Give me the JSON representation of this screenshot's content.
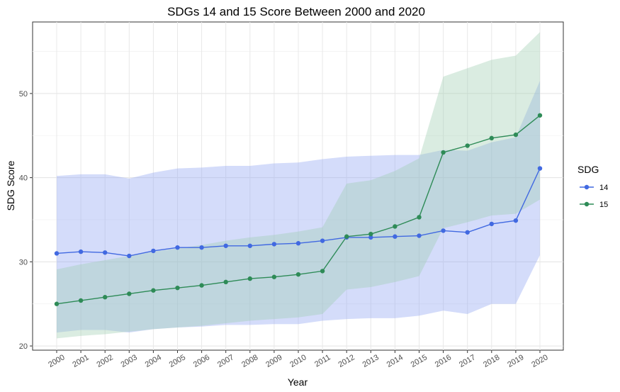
{
  "chart_data": {
    "type": "line",
    "title": "SDGs 14 and 15 Score Between 2000 and 2020",
    "xlabel": "Year",
    "ylabel": "SDG Score",
    "x": [
      "2000",
      "2001",
      "2002",
      "2003",
      "2004",
      "2005",
      "2006",
      "2007",
      "2008",
      "2009",
      "2010",
      "2011",
      "2012",
      "2013",
      "2014",
      "2015",
      "2016",
      "2017",
      "2018",
      "2019",
      "2020"
    ],
    "ylim": [
      19.5,
      58.5
    ],
    "yticks": [
      20,
      30,
      40,
      50
    ],
    "grid": true,
    "legend": {
      "title": "SDG",
      "position": "right"
    },
    "series": [
      {
        "name": "14",
        "color": "#4169e1",
        "band_color": "#8ea2f2",
        "values": [
          31.0,
          31.2,
          31.1,
          30.7,
          31.3,
          31.7,
          31.7,
          31.9,
          31.9,
          32.1,
          32.2,
          32.5,
          32.9,
          32.9,
          33.0,
          33.1,
          33.7,
          33.5,
          34.5,
          34.9,
          41.1
        ],
        "lower": [
          21.6,
          21.9,
          21.9,
          21.6,
          22.0,
          22.2,
          22.3,
          22.5,
          22.5,
          22.6,
          22.6,
          23.0,
          23.2,
          23.3,
          23.3,
          23.6,
          24.2,
          23.8,
          25.0,
          25.0,
          30.8
        ],
        "upper": [
          40.2,
          40.4,
          40.4,
          39.9,
          40.6,
          41.1,
          41.2,
          41.4,
          41.4,
          41.7,
          41.8,
          42.2,
          42.5,
          42.6,
          42.7,
          42.7,
          43.3,
          43.2,
          44.2,
          44.8,
          51.5
        ]
      },
      {
        "name": "15",
        "color": "#2e8b57",
        "band_color": "#9fceb1",
        "values": [
          25.0,
          25.4,
          25.8,
          26.2,
          26.6,
          26.9,
          27.2,
          27.6,
          28.0,
          28.2,
          28.5,
          28.9,
          33.0,
          33.3,
          34.2,
          35.3,
          43.0,
          43.8,
          44.7,
          45.1,
          47.4
        ],
        "lower": [
          20.9,
          21.2,
          21.4,
          21.7,
          22.0,
          22.2,
          22.4,
          22.7,
          23.0,
          23.2,
          23.4,
          23.8,
          26.7,
          27.0,
          27.6,
          28.3,
          34.0,
          34.7,
          35.5,
          35.7,
          37.4
        ],
        "upper": [
          29.1,
          29.7,
          30.2,
          30.7,
          31.2,
          31.6,
          32.0,
          32.5,
          32.9,
          33.2,
          33.6,
          34.1,
          39.3,
          39.7,
          40.8,
          42.3,
          52.0,
          53.0,
          54.0,
          54.5,
          57.3
        ]
      }
    ]
  }
}
